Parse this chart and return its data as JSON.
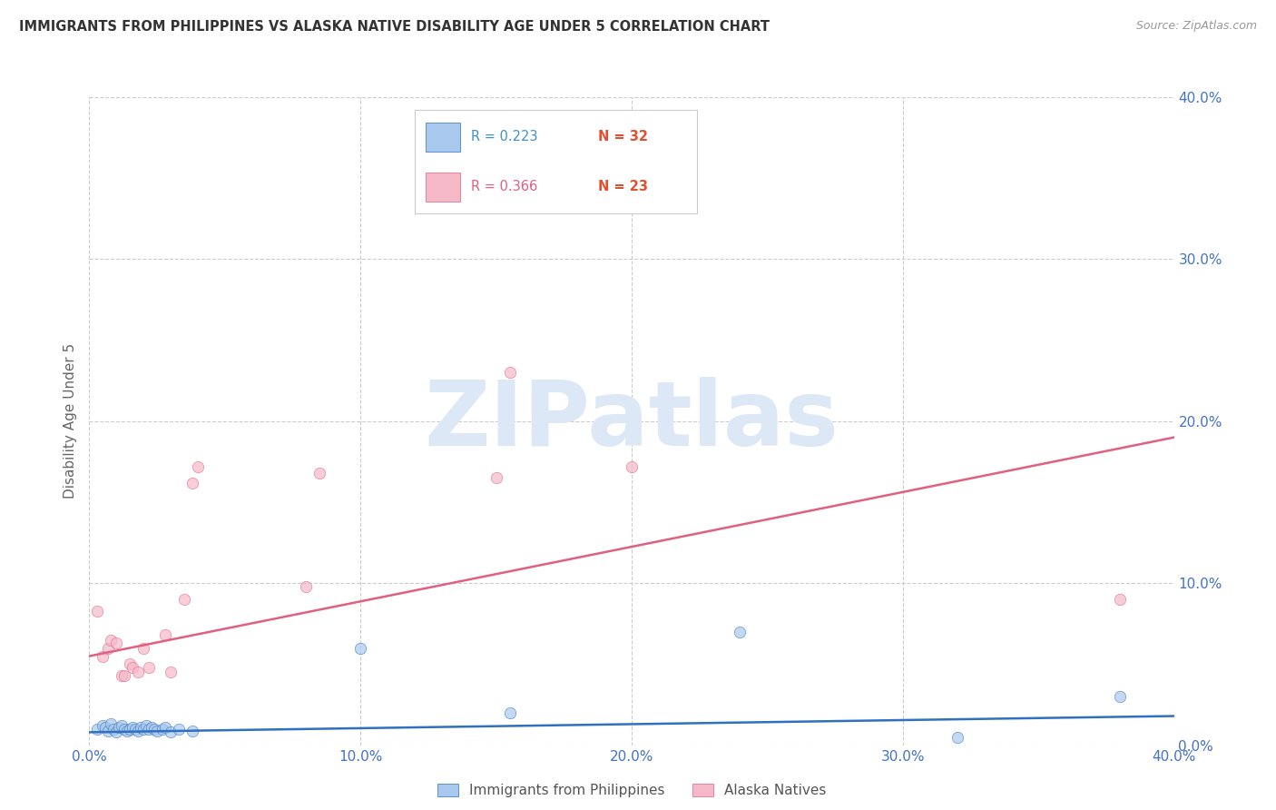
{
  "title": "IMMIGRANTS FROM PHILIPPINES VS ALASKA NATIVE DISABILITY AGE UNDER 5 CORRELATION CHART",
  "source": "Source: ZipAtlas.com",
  "ylabel": "Disability Age Under 5",
  "xlim": [
    0.0,
    0.4
  ],
  "ylim": [
    0.0,
    0.4
  ],
  "xtick_vals": [
    0.0,
    0.1,
    0.2,
    0.3,
    0.4
  ],
  "ytick_vals": [
    0.0,
    0.1,
    0.2,
    0.3,
    0.4
  ],
  "blue_scatter_x": [
    0.003,
    0.005,
    0.006,
    0.007,
    0.008,
    0.009,
    0.01,
    0.011,
    0.012,
    0.013,
    0.014,
    0.015,
    0.016,
    0.017,
    0.018,
    0.019,
    0.02,
    0.021,
    0.022,
    0.023,
    0.024,
    0.025,
    0.027,
    0.028,
    0.03,
    0.033,
    0.038,
    0.1,
    0.155,
    0.24,
    0.32,
    0.38
  ],
  "blue_scatter_y": [
    0.01,
    0.012,
    0.011,
    0.009,
    0.013,
    0.01,
    0.008,
    0.011,
    0.012,
    0.01,
    0.009,
    0.01,
    0.011,
    0.01,
    0.009,
    0.011,
    0.01,
    0.012,
    0.01,
    0.011,
    0.01,
    0.009,
    0.01,
    0.011,
    0.008,
    0.01,
    0.009,
    0.06,
    0.02,
    0.07,
    0.005,
    0.03
  ],
  "pink_scatter_x": [
    0.003,
    0.005,
    0.007,
    0.008,
    0.01,
    0.012,
    0.013,
    0.015,
    0.016,
    0.018,
    0.02,
    0.022,
    0.028,
    0.03,
    0.035,
    0.038,
    0.04,
    0.08,
    0.085,
    0.15,
    0.155,
    0.2,
    0.38
  ],
  "pink_scatter_y": [
    0.083,
    0.055,
    0.06,
    0.065,
    0.063,
    0.043,
    0.043,
    0.05,
    0.048,
    0.045,
    0.06,
    0.048,
    0.068,
    0.045,
    0.09,
    0.162,
    0.172,
    0.098,
    0.168,
    0.165,
    0.23,
    0.172,
    0.09
  ],
  "blue_line_x": [
    0.0,
    0.4
  ],
  "blue_line_y": [
    0.008,
    0.018
  ],
  "pink_line_x": [
    0.0,
    0.4
  ],
  "pink_line_y": [
    0.055,
    0.19
  ],
  "blue_color": "#a8c8ee",
  "pink_color": "#f4b8c8",
  "blue_line_color": "#3070c0",
  "pink_line_color": "#e06080",
  "legend_r_blue": "R = 0.223",
  "legend_n_blue": "N = 32",
  "legend_r_pink": "R = 0.366",
  "legend_n_pink": "N = 23",
  "legend_r_color_blue": "#4090d0",
  "legend_n_color": "#e05030",
  "legend_r_color_pink": "#e06080",
  "title_color": "#333333",
  "axis_tick_color": "#4472c4",
  "grid_color": "#cccccc",
  "background_color": "#ffffff",
  "watermark_color": "#dce8f5",
  "watermark_text": "ZIPatlas",
  "legend_label_blue": "Immigrants from Philippines",
  "legend_label_pink": "Alaska Natives"
}
